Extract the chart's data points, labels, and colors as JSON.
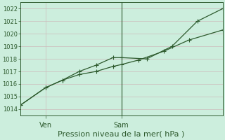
{
  "title": "",
  "xlabel": "Pression niveau de la mer( hPa )",
  "bg_color": "#cceedd",
  "grid_color": "#ccbbbb",
  "line_color": "#2d5a2d",
  "ylim": [
    1013.5,
    1022.5
  ],
  "yticks": [
    1014,
    1015,
    1016,
    1017,
    1018,
    1019,
    1020,
    1021,
    1022
  ],
  "xlim": [
    0,
    12
  ],
  "xtick_positions": [
    1.5,
    6.0
  ],
  "xtick_labels": [
    "Ven",
    "Sam"
  ],
  "vline_x": 6.0,
  "line1_x": [
    0,
    1.5,
    2.5,
    3.5,
    4.5,
    5.5,
    6.0,
    7.0,
    8.5,
    10.0,
    12.0
  ],
  "line1_y": [
    1014.3,
    1015.7,
    1016.3,
    1016.75,
    1017.0,
    1017.4,
    1017.55,
    1017.9,
    1018.6,
    1019.5,
    1020.3
  ],
  "line2_x": [
    0,
    1.5,
    2.5,
    3.5,
    4.5,
    5.5,
    6.0,
    7.5,
    9.0,
    10.5,
    12.0
  ],
  "line2_y": [
    1014.3,
    1015.7,
    1016.3,
    1017.0,
    1017.5,
    1018.1,
    1018.1,
    1018.0,
    1019.0,
    1021.0,
    1022.0
  ],
  "marker_size": 4,
  "xlabel_fontsize": 8,
  "xlabel_color": "#2d5a2d",
  "tick_fontsize": 6,
  "spine_color": "#2d5a2d"
}
